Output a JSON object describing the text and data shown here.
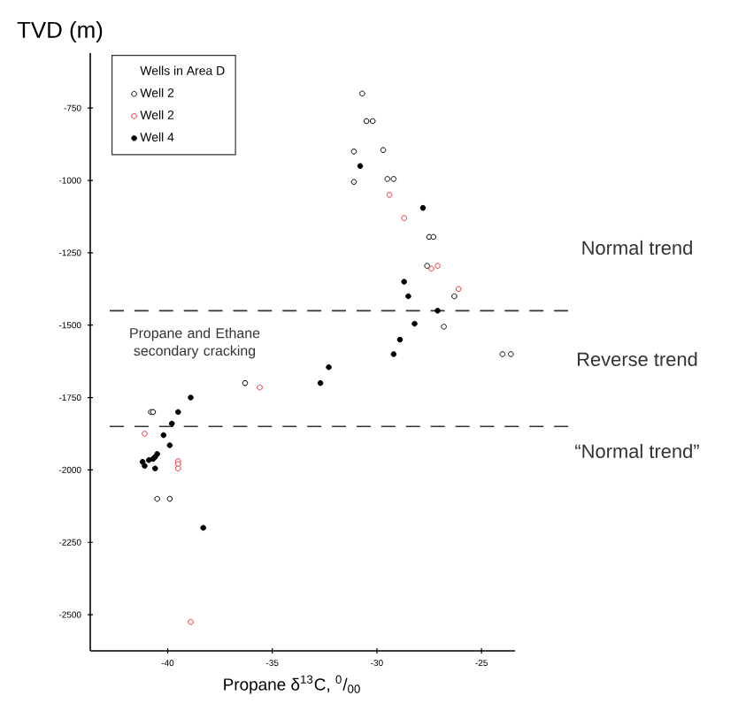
{
  "chart_data": {
    "type": "scatter",
    "ylabel": "TVD (m)",
    "xlabel": "Propane δ$^{13}$C, $^{0}$/$_{00}$",
    "legend_title": "Wells in Area D",
    "legend": "top left",
    "marker": "circle",
    "grid": false,
    "xlim": [
      -43.7,
      -23.4
    ],
    "ylim": [
      -2625,
      -560
    ],
    "xticks": [
      -40,
      -35,
      -30,
      -25
    ],
    "yticks": [
      -750,
      -1000,
      -1250,
      -1500,
      -1750,
      -2000,
      -2250,
      -2500
    ],
    "series": [
      {
        "name": "Well 2",
        "color": "#000000",
        "x": [
          -30.7,
          -30.5,
          -30.2,
          -31.1,
          -29.7,
          -31.1,
          -29.5,
          -29.2,
          -27.5,
          -27.3,
          -27.6,
          -26.3,
          -26.8,
          -24.0,
          -23.6,
          -36.3,
          -40.8,
          -40.7,
          -40.5,
          -39.9
        ],
        "values": [
          -700,
          -795,
          -795,
          -900,
          -895,
          -1005,
          -995,
          -995,
          -1195,
          -1195,
          -1295,
          -1400,
          -1505,
          -1600,
          -1600,
          -1700,
          -1800,
          -1800,
          -2100,
          -2100
        ]
      },
      {
        "name": "Well 2",
        "color": "#e8262a",
        "x": [
          -29.4,
          -28.7,
          -27.4,
          -27.1,
          -26.1,
          -35.6,
          -41.1,
          -39.5,
          -39.5,
          -39.5,
          -38.9
        ],
        "values": [
          -1050,
          -1130,
          -1305,
          -1295,
          -1375,
          -1715,
          -1875,
          -1970,
          -1980,
          -1995,
          -2525
        ]
      },
      {
        "name": "Well 4",
        "color": "#000000",
        "x": [
          -30.8,
          -27.8,
          -28.7,
          -28.5,
          -27.1,
          -28.2,
          -28.9,
          -29.2,
          -32.7,
          -32.3,
          -38.9,
          -39.5,
          -39.8,
          -40.2,
          -39.9,
          -40.5,
          -41.2,
          null,
          -41.1,
          -40.9,
          -40.7,
          -40.6,
          -40.6,
          -38.3
        ],
        "values": [
          -950,
          -1095,
          -1350,
          -1400,
          -1450,
          -1495,
          -1550,
          -1600,
          -1700,
          -1645,
          -1750,
          -1800,
          -1840,
          -1880,
          -1915,
          -1945,
          -1972,
          null,
          -1986,
          -1966,
          -1962,
          -1955,
          -1995,
          -2200
        ]
      }
    ],
    "ref_lines": [
      {
        "axis": "y",
        "value": -1450,
        "color": "#333333",
        "line_style": "dashed"
      },
      {
        "axis": "y",
        "value": -1850,
        "color": "#333333",
        "line_style": "dashed"
      }
    ],
    "annotations": [
      "Propane and Ethane secondary cracking",
      "Normal trend",
      "Reverse trend",
      "“Normal trend”"
    ]
  }
}
